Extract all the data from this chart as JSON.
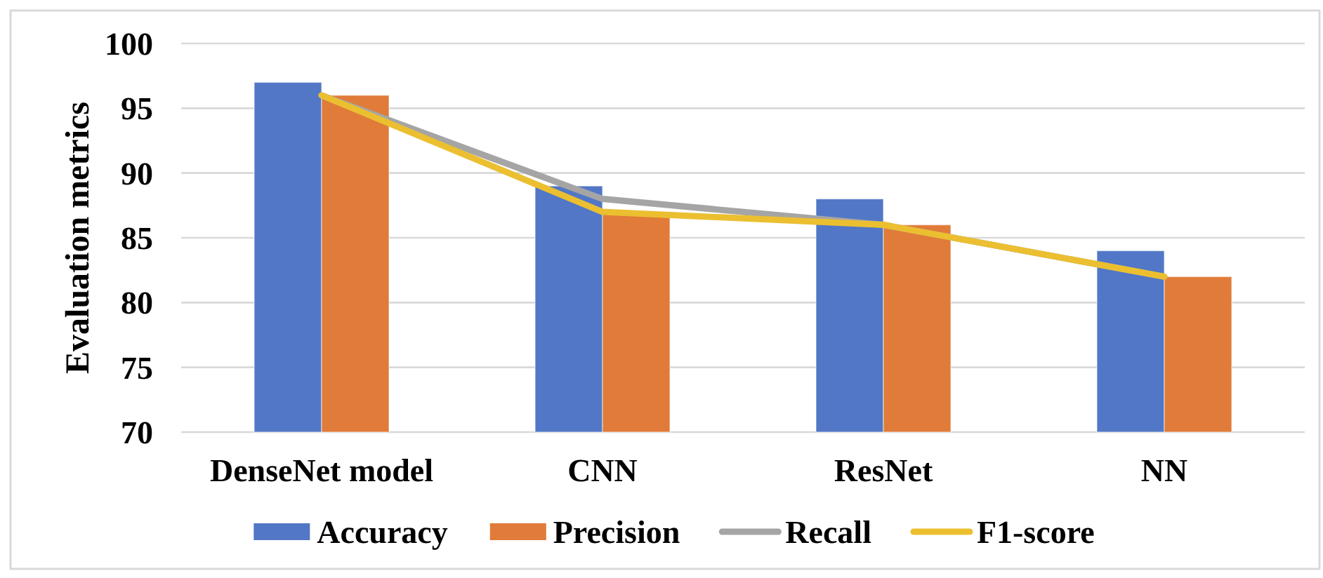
{
  "chart_data": {
    "type": "bar",
    "categories": [
      "DenseNet model",
      "CNN",
      "ResNet",
      "NN"
    ],
    "ylabel": "Evaluation metrics",
    "ylim": [
      70,
      100
    ],
    "yticks": [
      70,
      75,
      80,
      85,
      90,
      95,
      100
    ],
    "grid": "y",
    "legend": "bottom",
    "series": [
      {
        "name": "Accuracy",
        "color": "#5277c6",
        "values": [
          97,
          89,
          88,
          84
        ]
      },
      {
        "name": "Precision",
        "color": "#e07b39",
        "values": [
          96,
          87,
          86,
          82
        ]
      },
      {
        "name": "Recall",
        "type": "line",
        "color": "#a5a5a5",
        "values": [
          96,
          88,
          86,
          82
        ]
      },
      {
        "name": "F1-score",
        "type": "line",
        "color": "#ebbf30",
        "values": [
          96,
          87,
          86,
          82
        ]
      }
    ]
  }
}
